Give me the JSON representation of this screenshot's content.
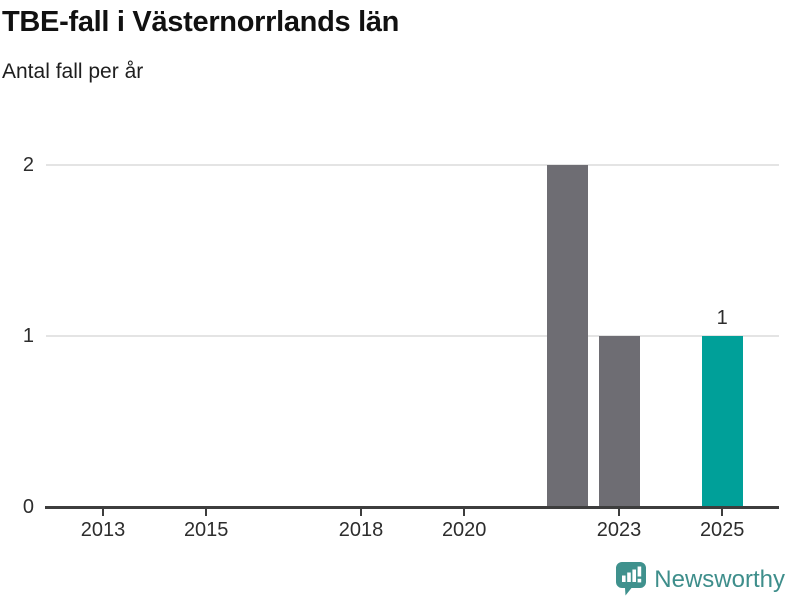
{
  "chart": {
    "title": "TBE-fall i Västernorrlands län",
    "subtitle": "Antal fall per år"
  },
  "chart_data": {
    "type": "bar",
    "title": "TBE-fall i Västernorrlands län",
    "subtitle": "Antal fall per år",
    "x": [
      2022,
      2023,
      2025
    ],
    "values": [
      2,
      1,
      1
    ],
    "bar_colors": [
      "#6e6d73",
      "#6e6d73",
      "#00a099"
    ],
    "value_labels": [
      {
        "x": 2025,
        "y": 1,
        "text": "1"
      }
    ],
    "x_ticks": [
      "2013",
      "2015",
      "2018",
      "2020",
      "2023",
      "2025"
    ],
    "y_ticks": [
      "0",
      "1",
      "2"
    ],
    "ylim": [
      0,
      2
    ],
    "xlabel": "",
    "ylabel": "Antal fall per år",
    "grid": "horizontal",
    "legend": "none",
    "colors": {
      "default_bar": "#6e6d73",
      "highlight_bar": "#00a099",
      "gridline": "#e4e4e4",
      "axis": "#3d3d3d",
      "tick_text": "#2d2d2d",
      "title_text": "#111111"
    }
  },
  "footer": {
    "brand": "Newsworthy",
    "brand_color": "#3e8e8b",
    "logo_icon_color": "#3f918d"
  }
}
